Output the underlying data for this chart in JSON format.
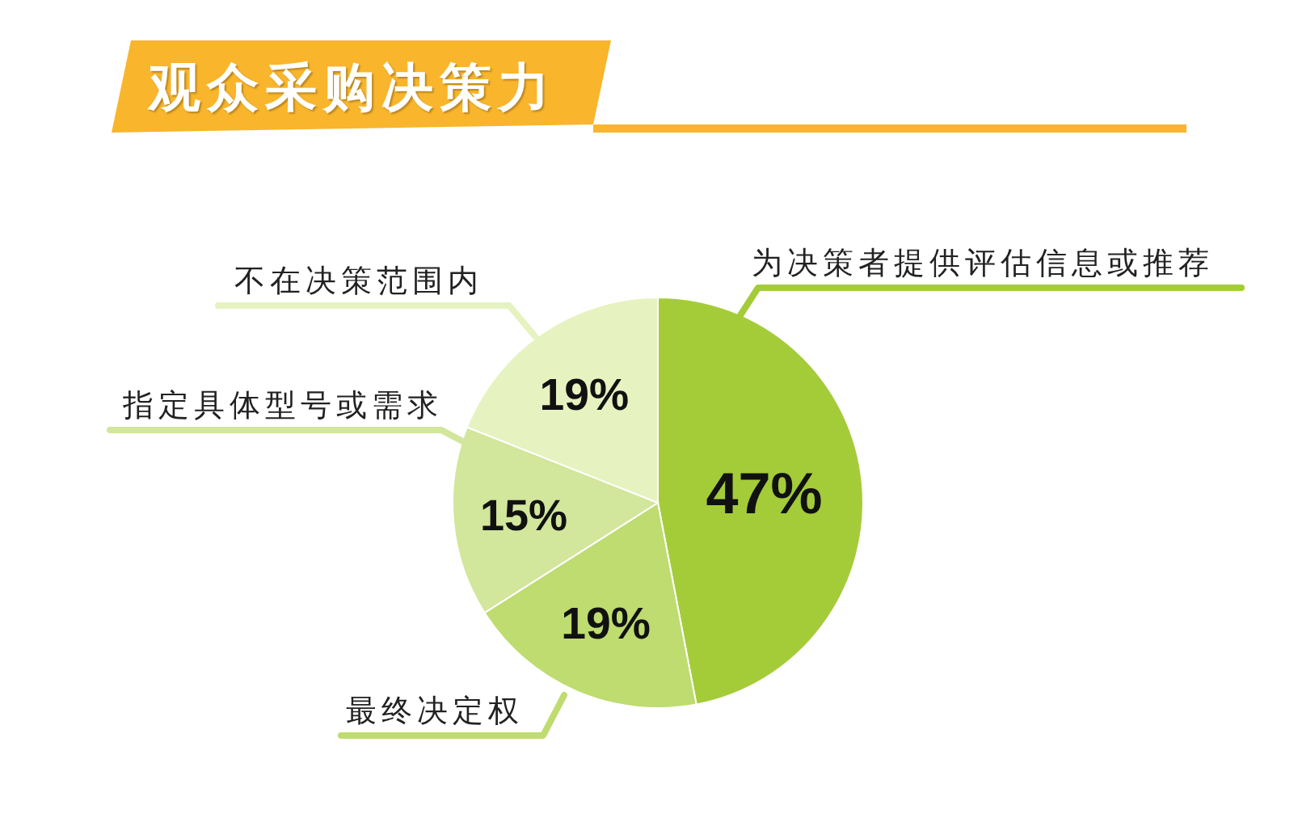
{
  "chart_data": {
    "type": "pie",
    "title": "观众采购决策力",
    "categories": [
      "为决策者提供评估信息或推荐",
      "最终决定权",
      "指定具体型号或需求",
      "不在决策范围内"
    ],
    "values": [
      47,
      19,
      15,
      19
    ],
    "colors": [
      "#a4cc39",
      "#bedc6f",
      "#d2e69c",
      "#e6f2c0"
    ],
    "value_labels": [
      "47%",
      "19%",
      "15%",
      "19%"
    ]
  }
}
